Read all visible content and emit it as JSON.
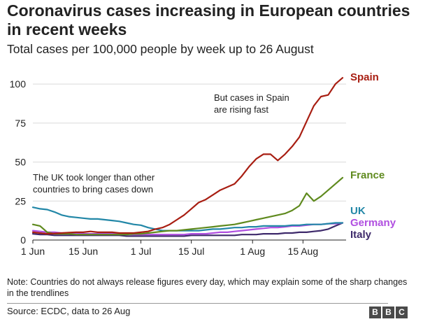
{
  "title": "Coronavirus cases increasing in European countries in recent weeks",
  "subtitle": "Total cases per 100,000 people by week up to 26 August",
  "note": "Note: Countries do not always release figures every day, which may explain some of the sharp changes in the trendlines",
  "source": "Source: ECDC, data to 26 Aug",
  "logo": [
    "B",
    "B",
    "C"
  ],
  "chart_data": {
    "type": "line",
    "x_days": [
      0,
      2,
      4,
      6,
      8,
      10,
      12,
      14,
      16,
      18,
      20,
      22,
      24,
      26,
      28,
      30,
      32,
      34,
      36,
      38,
      40,
      42,
      44,
      46,
      48,
      50,
      52,
      54,
      56,
      58,
      60,
      62,
      64,
      66,
      68,
      70,
      72,
      74,
      76,
      78,
      80,
      82,
      84,
      86
    ],
    "x_ticks": [
      0,
      14,
      30,
      44,
      61,
      75
    ],
    "x_tick_labels": [
      "1 Jun",
      "15 Jun",
      "1 Jul",
      "15 Jul",
      "1 Aug",
      "15 Aug"
    ],
    "xlim": [
      0,
      86
    ],
    "ylim": [
      0,
      105
    ],
    "y_ticks": [
      0,
      25,
      50,
      75,
      100
    ],
    "y_tick_labels": [
      "0",
      "25",
      "50",
      "75",
      "100"
    ],
    "grid": true,
    "series": [
      {
        "name": "Spain",
        "color": "#a81e12",
        "values": [
          5,
          4.5,
          4,
          4.2,
          4.5,
          4.8,
          5,
          5,
          5.5,
          5,
          5,
          5,
          4.5,
          4.5,
          4.5,
          5,
          5.5,
          7,
          8,
          10,
          13,
          16,
          20,
          24,
          26,
          29,
          32,
          34,
          36,
          41,
          47,
          52,
          55,
          55,
          51,
          55,
          60,
          66,
          76,
          86,
          92,
          93,
          100,
          104
        ]
      },
      {
        "name": "France",
        "color": "#5f8a1e",
        "values": [
          10,
          9,
          5,
          4,
          4,
          4,
          3.5,
          3.5,
          3.5,
          3.5,
          3.5,
          3.5,
          3.5,
          3.5,
          4,
          4,
          4.5,
          5,
          5.5,
          6,
          6,
          6.5,
          7,
          7.5,
          8,
          8.5,
          9,
          9.5,
          10,
          11,
          12,
          13,
          14,
          15,
          16,
          17,
          19,
          22,
          30,
          25,
          28,
          32,
          36,
          40
        ]
      },
      {
        "name": "UK",
        "color": "#2287a7",
        "values": [
          21,
          20,
          19.5,
          18,
          16,
          15,
          14.5,
          14,
          13.5,
          13.5,
          13,
          12.5,
          12,
          11,
          10,
          9.5,
          8,
          7,
          6,
          6,
          6,
          6,
          6,
          6,
          6.5,
          7,
          7,
          7.5,
          8,
          8,
          8.5,
          8.5,
          9,
          9,
          9,
          9,
          9.5,
          9.5,
          10,
          10,
          10,
          10.5,
          11,
          11
        ]
      },
      {
        "name": "Germany",
        "color": "#b04fe0",
        "values": [
          6,
          5.5,
          5,
          5,
          4.5,
          4.5,
          4.5,
          4,
          4,
          4,
          4,
          4,
          4,
          4,
          3.5,
          3.5,
          3.5,
          3.5,
          3.5,
          3.5,
          3.5,
          3.5,
          4,
          4,
          4,
          4.5,
          5,
          5,
          5.5,
          6,
          6.5,
          7,
          7.5,
          8,
          8,
          8.5,
          9,
          9,
          9.5,
          10,
          10,
          10.5,
          10.5,
          11
        ]
      },
      {
        "name": "Italy",
        "color": "#3e2a6b",
        "values": [
          4,
          3.5,
          3.5,
          3,
          3,
          3,
          3,
          3,
          3,
          3,
          3,
          3,
          3,
          2.5,
          2.5,
          2.5,
          2.5,
          2.5,
          2.5,
          2.5,
          2.5,
          2.5,
          3,
          3,
          3,
          3,
          3,
          3,
          3,
          3.5,
          3.5,
          3.5,
          4,
          4,
          4,
          4.5,
          4.5,
          5,
          5,
          5.5,
          6,
          7,
          9,
          11
        ]
      }
    ],
    "annotations": [
      {
        "lines": [
          "But cases in Spain",
          "are rising fast"
        ]
      },
      {
        "lines": [
          "The UK took longer than other",
          "countries to bring cases down"
        ]
      }
    ]
  }
}
